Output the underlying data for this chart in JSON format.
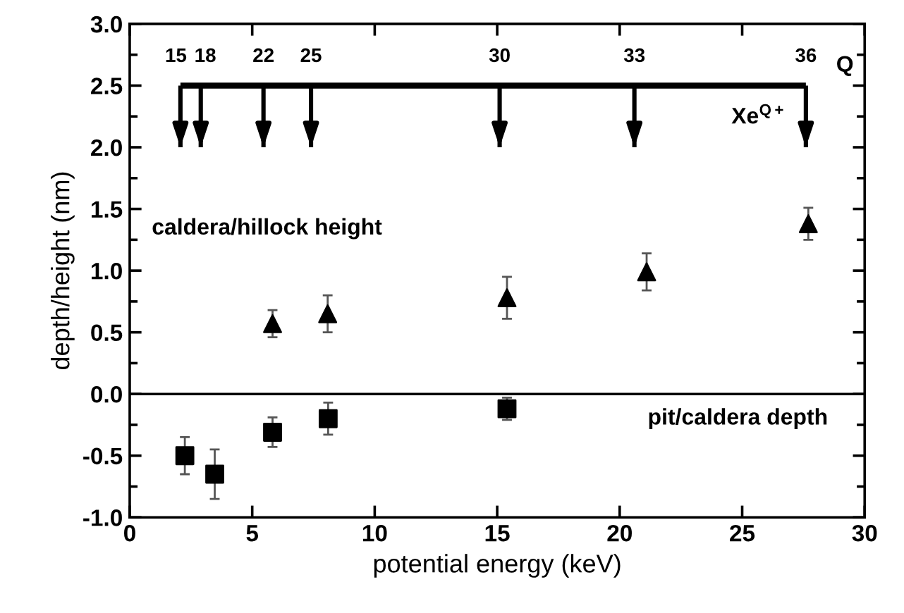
{
  "chart_data": {
    "type": "scatter",
    "xlabel": "potential energy (keV)",
    "ylabel": "depth/height (nm)",
    "xlim": [
      0,
      30
    ],
    "xticks": [
      0,
      5,
      10,
      15,
      20,
      25,
      30
    ],
    "ylim": [
      -1,
      3
    ],
    "yticks": [
      {
        "value": -1,
        "label": "-1.0"
      },
      {
        "value": -0.5,
        "label": "-0.5"
      },
      {
        "value": 0,
        "label": "0.0"
      },
      {
        "value": 0.5,
        "label": "0.5"
      },
      {
        "value": 1,
        "label": "1.0"
      },
      {
        "value": 1.5,
        "label": "1.5"
      },
      {
        "value": 2,
        "label": "2.0"
      },
      {
        "value": 2.5,
        "label": "2.5"
      },
      {
        "value": 3,
        "label": "3.0"
      }
    ],
    "grid": false,
    "legend": false,
    "series": [
      {
        "color": "#000000",
        "marker": "triangle",
        "x": [
          5.83,
          8.08,
          15.4,
          21.1,
          27.7
        ],
        "values": [
          0.57,
          0.65,
          0.78,
          0.99,
          1.38
        ],
        "errors": [
          0.11,
          0.15,
          0.17,
          0.15,
          0.13
        ]
      },
      {
        "color": "#000000",
        "marker": "square",
        "x": [
          2.25,
          3.47,
          5.83,
          8.1,
          15.4
        ],
        "values": [
          -0.5,
          -0.65,
          -0.31,
          -0.2,
          -0.12
        ],
        "errors": [
          0.15,
          0.2,
          0.12,
          0.13,
          0.09
        ]
      },
      {
        "type": "line",
        "color": "#000000",
        "marker": "none",
        "x": [
          2.07,
          2.9,
          5.46,
          7.4,
          15.1,
          20.6,
          27.6
        ],
        "values": [
          2.5,
          2.5,
          2.5,
          2.5,
          2.5,
          2.5,
          2.5
        ],
        "errors": [
          [
            2.0,
            2.5
          ],
          [
            2.0,
            2.5
          ],
          [
            2.0,
            2.5
          ],
          [
            2.0,
            2.5
          ],
          [
            2.0,
            2.5
          ],
          [
            2.0,
            2.5
          ],
          [
            2.0,
            2.5
          ]
        ]
      }
    ],
    "ref_lines": [
      {
        "axis": "y",
        "value": 0,
        "color": "#000000"
      }
    ],
    "annotations": [
      {
        "text": "15",
        "x": 2.07,
        "y": 2.5
      },
      {
        "text": "18",
        "x": 2.9,
        "y": 2.5
      },
      {
        "text": "22",
        "x": 5.46,
        "y": 2.5
      },
      {
        "text": "25",
        "x": 7.4,
        "y": 2.5
      },
      {
        "text": "30",
        "x": 15.1,
        "y": 2.5
      },
      {
        "text": "33",
        "x": 20.6,
        "y": 2.5
      },
      {
        "text": "36",
        "x": 27.6,
        "y": 2.5
      },
      "caldera/hillock height",
      "pit/caldera depth",
      "Q",
      "Xe$^{Q+}$"
    ]
  }
}
